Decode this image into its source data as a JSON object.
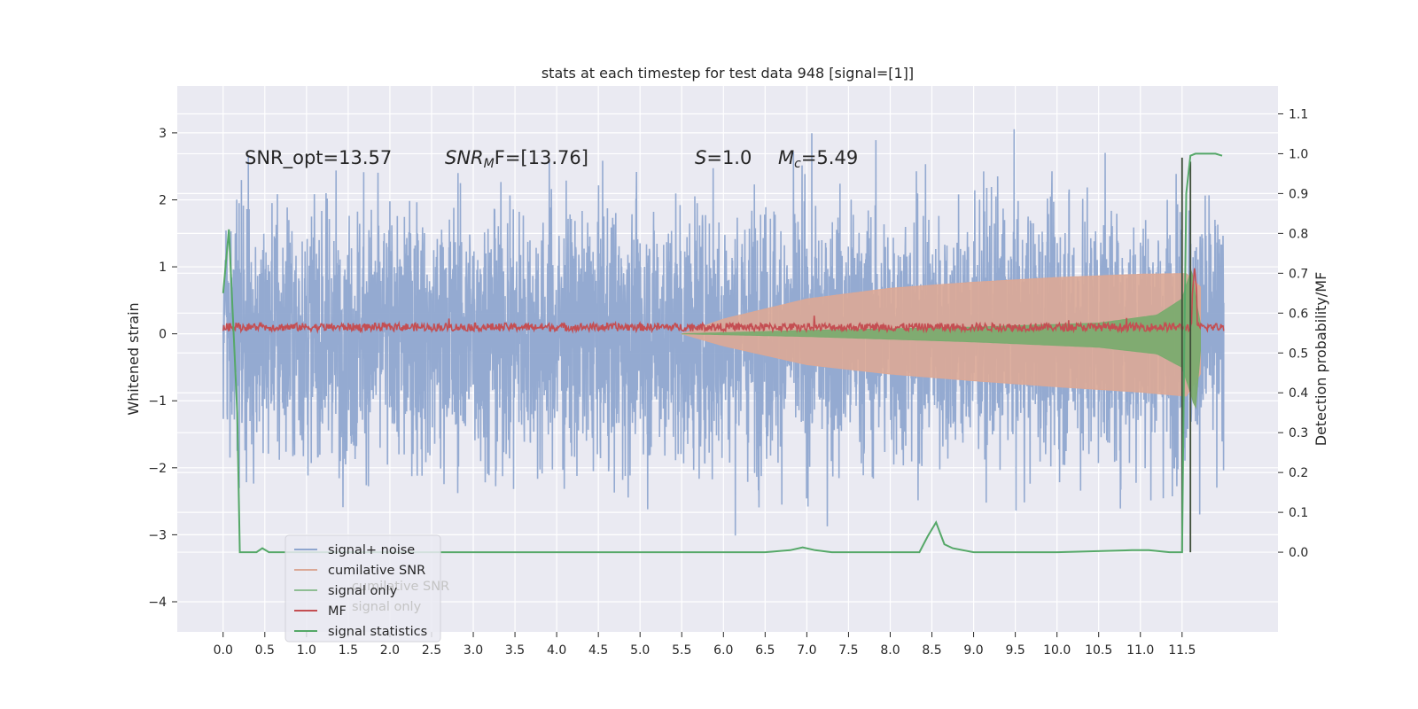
{
  "chart_data": {
    "type": "line",
    "title": "stats at each timestep for test data 948 [signal=[1]]",
    "xlabel": "",
    "ylabel": "Whitened strain",
    "y2label": "Detection probability/MF",
    "xlim": [
      -0.55,
      12.65
    ],
    "ylim": [
      -4.45,
      3.7
    ],
    "y2lim": [
      -0.2,
      1.17
    ],
    "x_ticks": [
      "0.0",
      "0.5",
      "1.0",
      "1.5",
      "2.0",
      "2.5",
      "3.0",
      "3.5",
      "4.0",
      "4.5",
      "5.0",
      "5.5",
      "6.0",
      "6.5",
      "7.0",
      "7.5",
      "8.0",
      "8.5",
      "9.0",
      "9.5",
      "10.0",
      "10.5",
      "11.0",
      "11.5"
    ],
    "y_ticks": [
      "3",
      "2",
      "1",
      "0",
      "−1",
      "−2",
      "−3",
      "−4"
    ],
    "y2_ticks": [
      "1.1",
      "1.0",
      "0.9",
      "0.8",
      "0.7",
      "0.6",
      "0.5",
      "0.4",
      "0.3",
      "0.2",
      "0.1",
      "0.0"
    ],
    "grid": true,
    "legend_position": "lower-left",
    "annotations": {
      "snr_opt": "SNR_opt=13.57",
      "snr_mf_base": "SNR",
      "snr_mf_sub": "M",
      "snr_mf_rest": "F=[13.76]",
      "s_label": "S",
      "s_value": "=1.0",
      "mc_base": "M",
      "mc_sub": "c",
      "mc_value": "=5.49"
    },
    "legend": [
      {
        "name": "signal+ noise",
        "color": "#8fa6cf"
      },
      {
        "name": "cumilative SNR",
        "color": "#dba896"
      },
      {
        "name": "signal only",
        "color": "#8fbe94"
      },
      {
        "name": "MF",
        "color": "#c44e52"
      },
      {
        "name": "signal statistics",
        "color": "#55a868"
      }
    ],
    "legend_ghost": [
      "cumilative SNR",
      "signal only"
    ],
    "series": [
      {
        "name": "signal+ noise",
        "t_range": [
          0.0,
          12.0
        ],
        "noise_sd": 0.95,
        "peak": 3.35
      },
      {
        "name": "cumilative SNR",
        "envelope": {
          "t": [
            5.5,
            6.0,
            7.0,
            8.0,
            9.0,
            10.0,
            11.0,
            11.55,
            11.72
          ],
          "upper": [
            0.0,
            0.22,
            0.52,
            0.68,
            0.77,
            0.84,
            0.89,
            0.9,
            0.7
          ],
          "lower": [
            0.0,
            -0.18,
            -0.46,
            -0.6,
            -0.7,
            -0.79,
            -0.87,
            -0.93,
            -0.6
          ]
        }
      },
      {
        "name": "signal only",
        "envelope": {
          "t": [
            5.5,
            7.0,
            9.0,
            10.5,
            11.2,
            11.5,
            11.62,
            11.66,
            11.72
          ],
          "upper": [
            0.0,
            0.05,
            0.1,
            0.16,
            0.28,
            0.52,
            1.0,
            0.55,
            0.15
          ],
          "lower": [
            0.0,
            -0.04,
            -0.12,
            -0.2,
            -0.3,
            -0.5,
            -0.95,
            -1.15,
            -0.25
          ]
        }
      },
      {
        "name": "MF",
        "base": 0.1,
        "noise_amp": 0.06,
        "spike_t": 11.65,
        "spike_v": 1.0
      },
      {
        "name": "signal statistics",
        "x": [
          0.0,
          0.07,
          0.17,
          0.2,
          0.3,
          0.4,
          0.47,
          0.55,
          0.75,
          1.0,
          3.0,
          4.3,
          6.5,
          6.8,
          6.95,
          7.1,
          7.3,
          8.35,
          8.45,
          8.55,
          8.65,
          8.75,
          9.0,
          10.0,
          10.9,
          11.1,
          11.35,
          11.5,
          11.52,
          11.55,
          11.6,
          11.66,
          11.72,
          11.9,
          11.98
        ],
        "y": [
          0.65,
          0.81,
          0.35,
          0.0,
          0.0,
          0.0,
          0.01,
          0.0,
          0.0,
          0.0,
          0.0,
          0.0,
          0.0,
          0.005,
          0.012,
          0.005,
          0.0,
          0.0,
          0.04,
          0.075,
          0.02,
          0.01,
          0.0,
          0.0,
          0.005,
          0.005,
          0.0,
          0.0,
          0.4,
          0.9,
          0.995,
          1.0,
          1.0,
          1.0,
          0.995
        ]
      }
    ],
    "markers": [
      {
        "x": 11.5,
        "y2_range": [
          0.0,
          0.99
        ]
      },
      {
        "x": 11.6,
        "y2_range": [
          0.0,
          0.98
        ]
      }
    ]
  }
}
